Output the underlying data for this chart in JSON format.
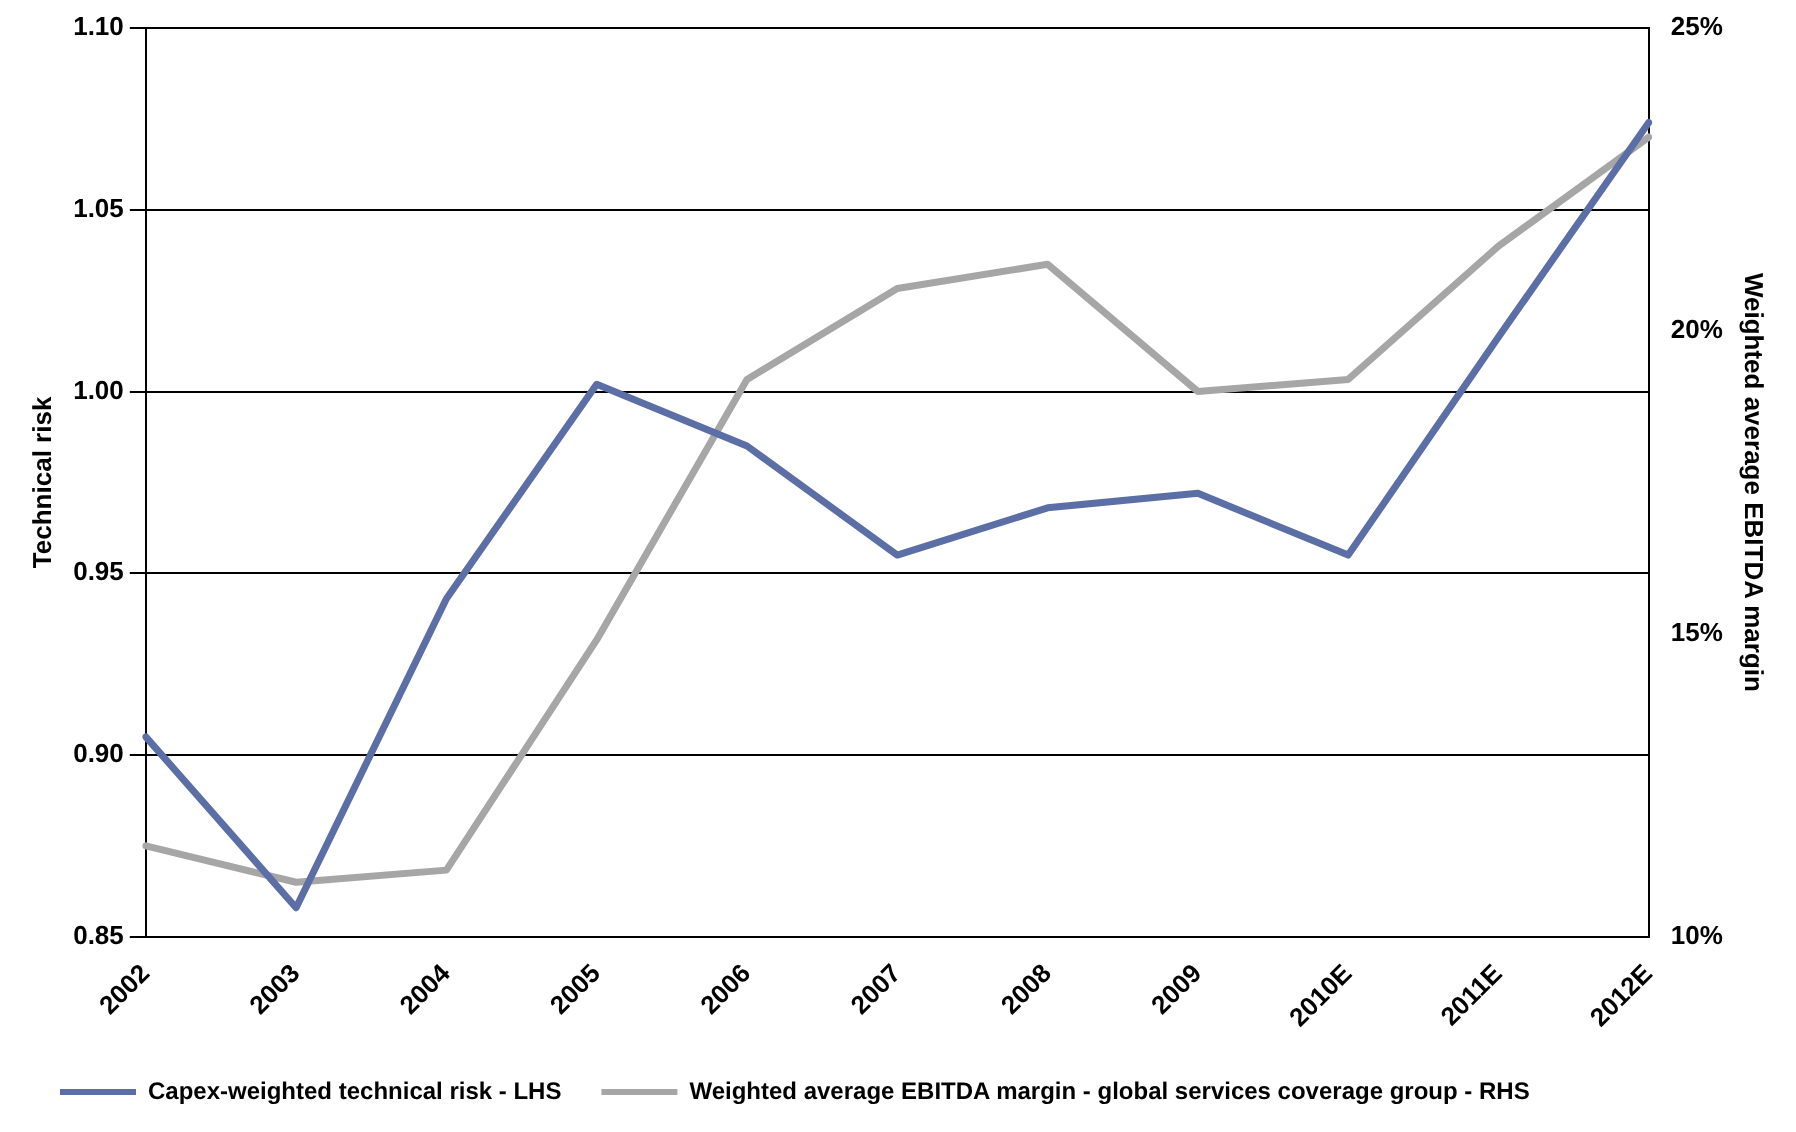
{
  "chart_data": {
    "type": "line",
    "ylabel": "Technical risk",
    "y2label": "Weighted average EBITDA margin",
    "categories": [
      "2002",
      "2003",
      "2004",
      "2005",
      "2006",
      "2007",
      "2008",
      "2009",
      "2010E",
      "2011E",
      "2012E"
    ],
    "series": [
      {
        "name": "Capex-weighted technical risk - LHS",
        "color": "#5b6fa6",
        "values": [
          0.905,
          0.858,
          0.943,
          1.002,
          0.985,
          0.955,
          0.968,
          0.972,
          0.955,
          1.015,
          1.074
        ]
      },
      {
        "name": "Weighted average EBITDA margin - global services coverage group - RHS",
        "color": "#a6a6a6",
        "axis": "y2",
        "values": [
          11.5,
          10.9,
          11.1,
          14.9,
          19.2,
          20.7,
          21.1,
          19.0,
          19.2,
          21.4,
          23.2
        ]
      }
    ],
    "ylim": [
      0.85,
      1.1
    ],
    "yticks": [
      0.85,
      {
        "value": 0.9,
        "label": "0.90"
      },
      0.95,
      {
        "value": 1,
        "label": "1.00"
      },
      1.05,
      {
        "value": 1.1,
        "label": "1.10"
      }
    ],
    "y2lim": [
      10,
      25
    ],
    "y2ticks": [
      {
        "value": 10,
        "label": "10%"
      },
      {
        "value": 15,
        "label": "15%"
      },
      {
        "value": 20,
        "label": "20%"
      },
      {
        "value": 25,
        "label": "25%"
      }
    ],
    "grid": "y",
    "legend": "bottom",
    "marker": "none",
    "line_style": "solid"
  }
}
